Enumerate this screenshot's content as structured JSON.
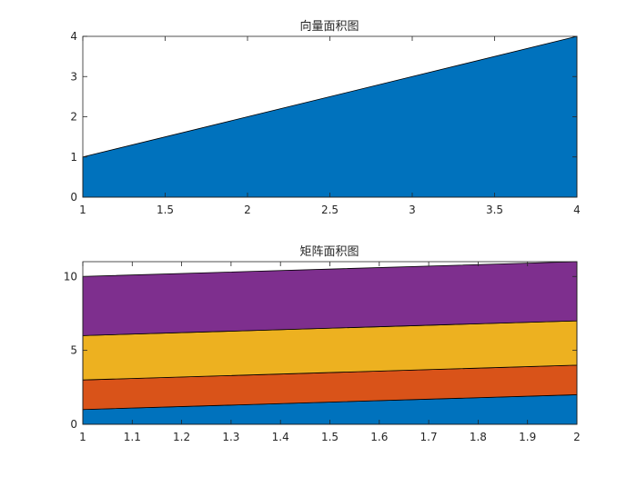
{
  "chart_data": [
    {
      "type": "area",
      "title": "向量面积图",
      "xlabel": "",
      "ylabel": "",
      "x": [
        1,
        2,
        3,
        4
      ],
      "series": [
        {
          "values": [
            1,
            2,
            3,
            4
          ],
          "color": "#0072BD"
        }
      ],
      "xlim": [
        1,
        4
      ],
      "ylim": [
        0,
        4
      ],
      "xticks": [
        1,
        1.5,
        2,
        2.5,
        3,
        3.5,
        4
      ],
      "yticks": [
        0,
        1,
        2,
        3,
        4
      ],
      "grid": false
    },
    {
      "type": "area",
      "stacked": true,
      "title": "矩阵面积图",
      "xlabel": "",
      "ylabel": "",
      "x": [
        1,
        2
      ],
      "series": [
        {
          "values": [
            1,
            2
          ],
          "color": "#0072BD"
        },
        {
          "values": [
            2,
            2
          ],
          "color": "#D95319"
        },
        {
          "values": [
            3,
            3
          ],
          "color": "#EDB120"
        },
        {
          "values": [
            4,
            4
          ],
          "color": "#7E2F8E"
        }
      ],
      "xlim": [
        1,
        2
      ],
      "ylim": [
        0,
        11
      ],
      "xticks": [
        1,
        1.1,
        1.2,
        1.3,
        1.4,
        1.5,
        1.6,
        1.7,
        1.8,
        1.9,
        2
      ],
      "yticks": [
        0,
        5,
        10
      ],
      "grid": false
    }
  ]
}
